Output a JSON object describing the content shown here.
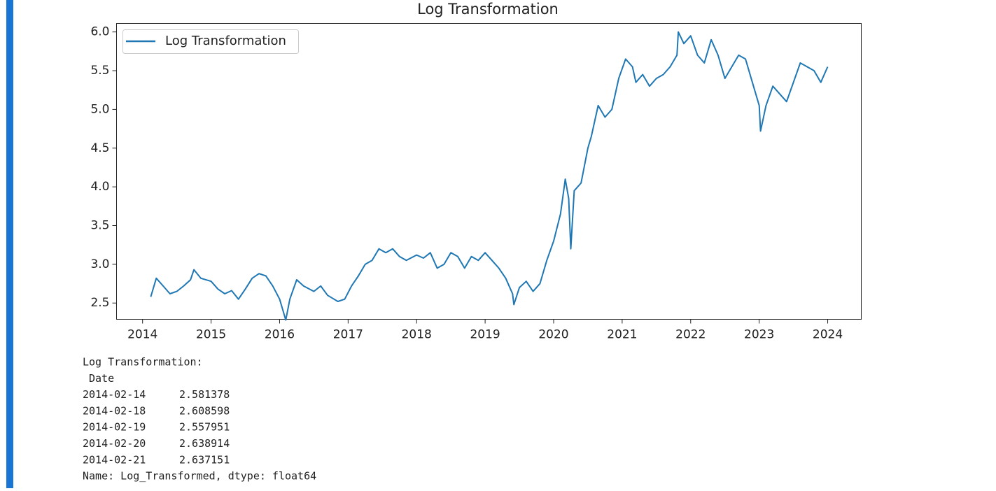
{
  "chart_data": {
    "type": "line",
    "title": "Log Transformation",
    "x": [
      2014.12,
      2014.2,
      2014.3,
      2014.4,
      2014.5,
      2014.6,
      2014.7,
      2014.75,
      2014.85,
      2015.0,
      2015.1,
      2015.2,
      2015.3,
      2015.4,
      2015.5,
      2015.6,
      2015.7,
      2015.8,
      2015.9,
      2016.0,
      2016.09,
      2016.15,
      2016.25,
      2016.35,
      2016.5,
      2016.6,
      2016.7,
      2016.85,
      2016.95,
      2017.05,
      2017.15,
      2017.25,
      2017.35,
      2017.45,
      2017.55,
      2017.65,
      2017.75,
      2017.85,
      2018.0,
      2018.1,
      2018.2,
      2018.3,
      2018.4,
      2018.5,
      2018.6,
      2018.7,
      2018.8,
      2018.9,
      2019.0,
      2019.1,
      2019.2,
      2019.3,
      2019.4,
      2019.42,
      2019.5,
      2019.6,
      2019.7,
      2019.8,
      2019.9,
      2020.0,
      2020.1,
      2020.17,
      2020.22,
      2020.25,
      2020.3,
      2020.4,
      2020.5,
      2020.55,
      2020.65,
      2020.75,
      2020.85,
      2020.95,
      2021.05,
      2021.15,
      2021.2,
      2021.3,
      2021.4,
      2021.5,
      2021.6,
      2021.7,
      2021.8,
      2021.82,
      2021.9,
      2022.0,
      2022.1,
      2022.2,
      2022.3,
      2022.4,
      2022.5,
      2022.6,
      2022.7,
      2022.8,
      2022.9,
      2023.0,
      2023.02,
      2023.1,
      2023.2,
      2023.3,
      2023.4,
      2023.5,
      2023.6,
      2023.7,
      2023.8,
      2023.9,
      2024.0
    ],
    "series": [
      {
        "name": "Log Transformation",
        "color": "#1f77b4",
        "values": [
          2.58,
          2.82,
          2.72,
          2.62,
          2.65,
          2.72,
          2.8,
          2.93,
          2.82,
          2.78,
          2.68,
          2.62,
          2.66,
          2.55,
          2.68,
          2.82,
          2.88,
          2.85,
          2.72,
          2.55,
          2.28,
          2.55,
          2.8,
          2.72,
          2.65,
          2.72,
          2.6,
          2.52,
          2.55,
          2.72,
          2.85,
          3.0,
          3.05,
          3.2,
          3.15,
          3.2,
          3.1,
          3.05,
          3.12,
          3.08,
          3.15,
          2.95,
          3.0,
          3.15,
          3.1,
          2.95,
          3.1,
          3.05,
          3.15,
          3.05,
          2.95,
          2.82,
          2.62,
          2.48,
          2.7,
          2.78,
          2.65,
          2.75,
          3.05,
          3.3,
          3.65,
          4.1,
          3.85,
          3.2,
          3.95,
          4.05,
          4.5,
          4.65,
          5.05,
          4.9,
          5.0,
          5.4,
          5.65,
          5.55,
          5.35,
          5.45,
          5.3,
          5.4,
          5.45,
          5.55,
          5.7,
          6.0,
          5.85,
          5.95,
          5.7,
          5.6,
          5.9,
          5.7,
          5.4,
          5.55,
          5.7,
          5.65,
          5.35,
          5.05,
          4.72,
          5.05,
          5.3,
          5.2,
          5.1,
          5.35,
          5.6,
          5.55,
          5.5,
          5.35,
          5.55
        ]
      }
    ],
    "xlim": [
      2013.62,
      2024.49
    ],
    "xticks": [
      2014,
      2015,
      2016,
      2017,
      2018,
      2019,
      2020,
      2021,
      2022,
      2023,
      2024
    ],
    "ylim": [
      2.29,
      6.11
    ],
    "yticks": [
      2.5,
      {
        "value": 3,
        "label": "3.0"
      },
      3.5,
      {
        "value": 4,
        "label": "4.0"
      },
      4.5,
      {
        "value": 5,
        "label": "5.0"
      },
      5.5,
      {
        "value": 6,
        "label": "6.0"
      }
    ],
    "legend": "upper left"
  },
  "output": {
    "header": "Log Transformation:",
    "index_name": "Date",
    "rows": [
      [
        "2014-02-14",
        2.581378
      ],
      [
        "2014-02-18",
        2.608598
      ],
      [
        "2014-02-19",
        2.557951
      ],
      [
        "2014-02-20",
        2.638914
      ],
      [
        "2014-02-21",
        2.637151
      ]
    ],
    "footer": "Name: Log_Transformed, dtype: float64"
  }
}
